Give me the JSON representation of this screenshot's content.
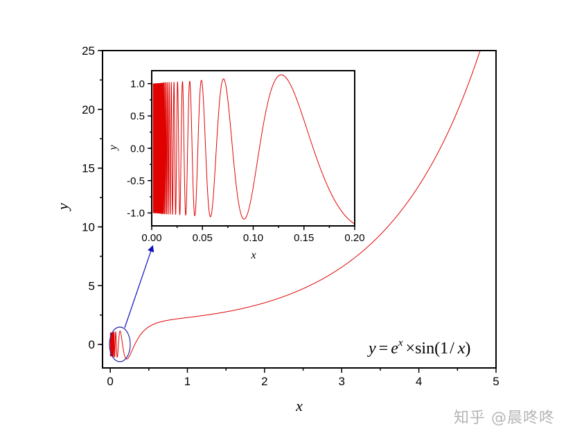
{
  "chart_data": [
    {
      "type": "line",
      "function": "exp(x)*sin(1/x)",
      "xlabel": "x",
      "ylabel": "y",
      "xlim": [
        -0.1,
        5
      ],
      "ylim": [
        -2,
        25
      ],
      "xticks": [
        "0",
        "1",
        "2",
        "3",
        "4",
        "5"
      ],
      "yticks": [
        "0",
        "5",
        "10",
        "15",
        "20",
        "25"
      ],
      "grid": false,
      "line_color": "#e00000",
      "annotation": "y = e^x × sin(1 / x)",
      "annotation_parts": {
        "y": "y",
        "eq": "=",
        "e": "e",
        "exp": "x",
        "times": "×",
        "sin": "sin(1",
        "slash": "/",
        "x": "x",
        "close": ")"
      },
      "highlight": {
        "shape": "ellipse",
        "color": "#2a2aa0",
        "region_x": [
          0,
          0.2
        ]
      }
    },
    {
      "type": "line",
      "function": "exp(x)*sin(1/x)",
      "xlabel": "x",
      "ylabel": "y",
      "xlim": [
        0,
        0.2
      ],
      "ylim": [
        -1.2,
        1.2
      ],
      "xticks": [
        "0.00",
        "0.05",
        "0.10",
        "0.15",
        "0.20"
      ],
      "yticks": [
        "-1.0",
        "-0.5",
        "0.0",
        "0.5",
        "1.0"
      ],
      "grid": false,
      "line_color": "#e00000"
    }
  ],
  "watermark": "知乎 @晨咚咚"
}
